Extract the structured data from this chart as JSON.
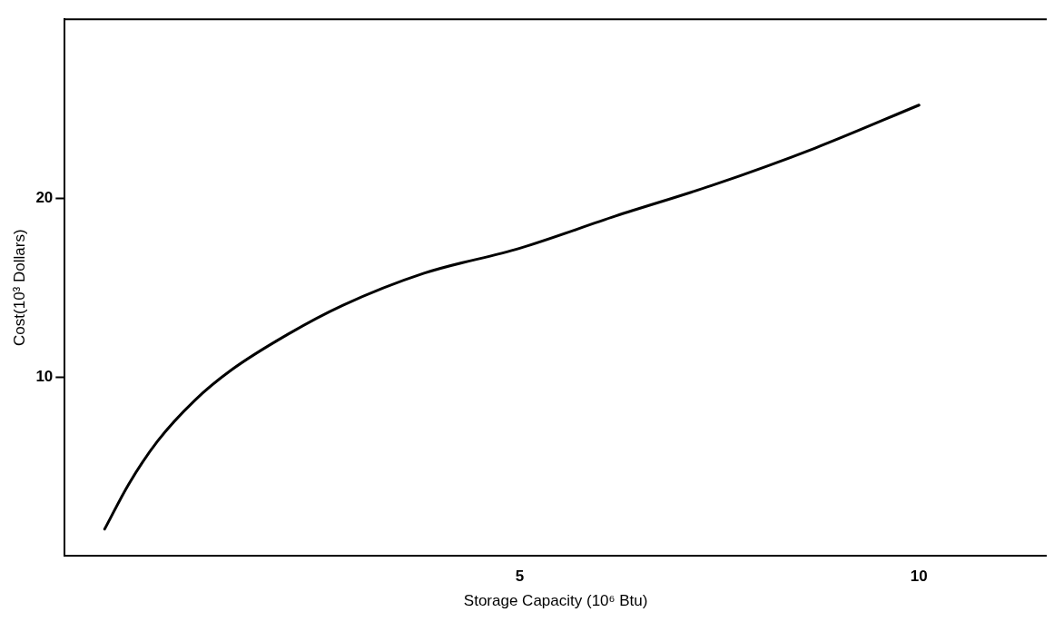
{
  "chart_data": {
    "type": "line",
    "xlabel": "Storage Capacity (10⁶ Btu)",
    "ylabel": "Cost(10³ Dollars)",
    "xlim": [
      -0.7,
      11.6
    ],
    "ylim": [
      0,
      30
    ],
    "xticks": [
      5,
      10
    ],
    "yticks": [
      10,
      20
    ],
    "grid": false,
    "legend": false,
    "marker": "none",
    "line_style": "solid",
    "series": [
      {
        "color": "#000000",
        "x": [
          -0.2,
          0.1,
          0.46,
          0.93,
          1.39,
          2.1,
          2.78,
          3.8,
          5,
          6.2,
          7.4,
          8.7,
          10
        ],
        "values": [
          1.5,
          4.0,
          6.4,
          8.7,
          10.4,
          12.4,
          14.0,
          15.8,
          17.2,
          19.0,
          20.7,
          22.8,
          25.2
        ]
      }
    ]
  }
}
